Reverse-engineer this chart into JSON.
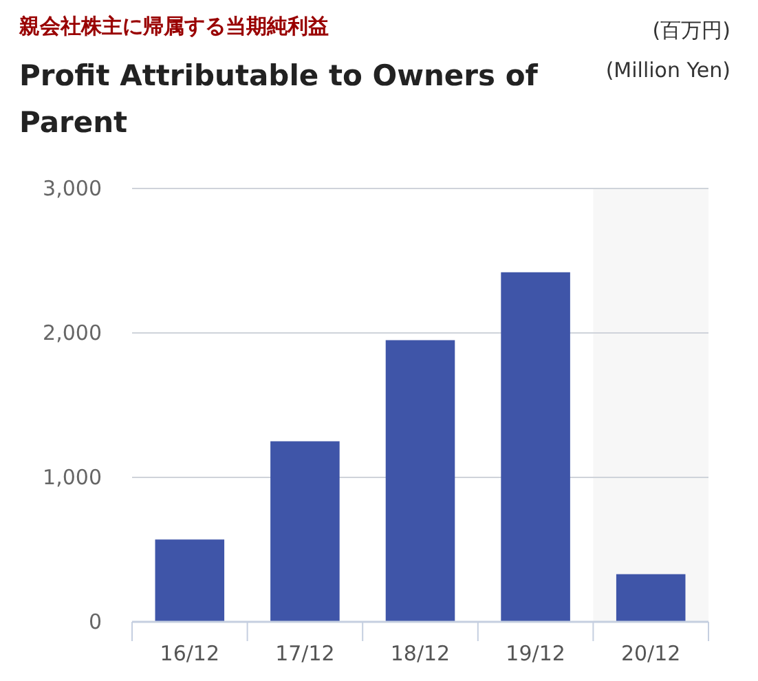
{
  "chart_data": {
    "type": "bar",
    "title": "親会社株主に帰属する当期純利益",
    "subtitle": "Profit Attributable to Owners of Parent",
    "annotations": [
      "(百万円)",
      "(Million Yen)"
    ],
    "categories": [
      "16/12",
      "17/12",
      "18/12",
      "19/12",
      "20/12"
    ],
    "values": [
      570,
      1250,
      1950,
      2420,
      330
    ],
    "color": "#3f55a8",
    "ylim": [
      0,
      3000
    ],
    "yticks": [
      0,
      {
        "value": 1000,
        "label": "1,000"
      },
      {
        "value": 2000,
        "label": "2,000"
      },
      {
        "value": 3000,
        "label": "3,000"
      }
    ],
    "grid": "y",
    "bands": [
      {
        "axis": "x",
        "from": "20/12",
        "to": "20/12",
        "color": "#f7f7f7"
      }
    ]
  }
}
